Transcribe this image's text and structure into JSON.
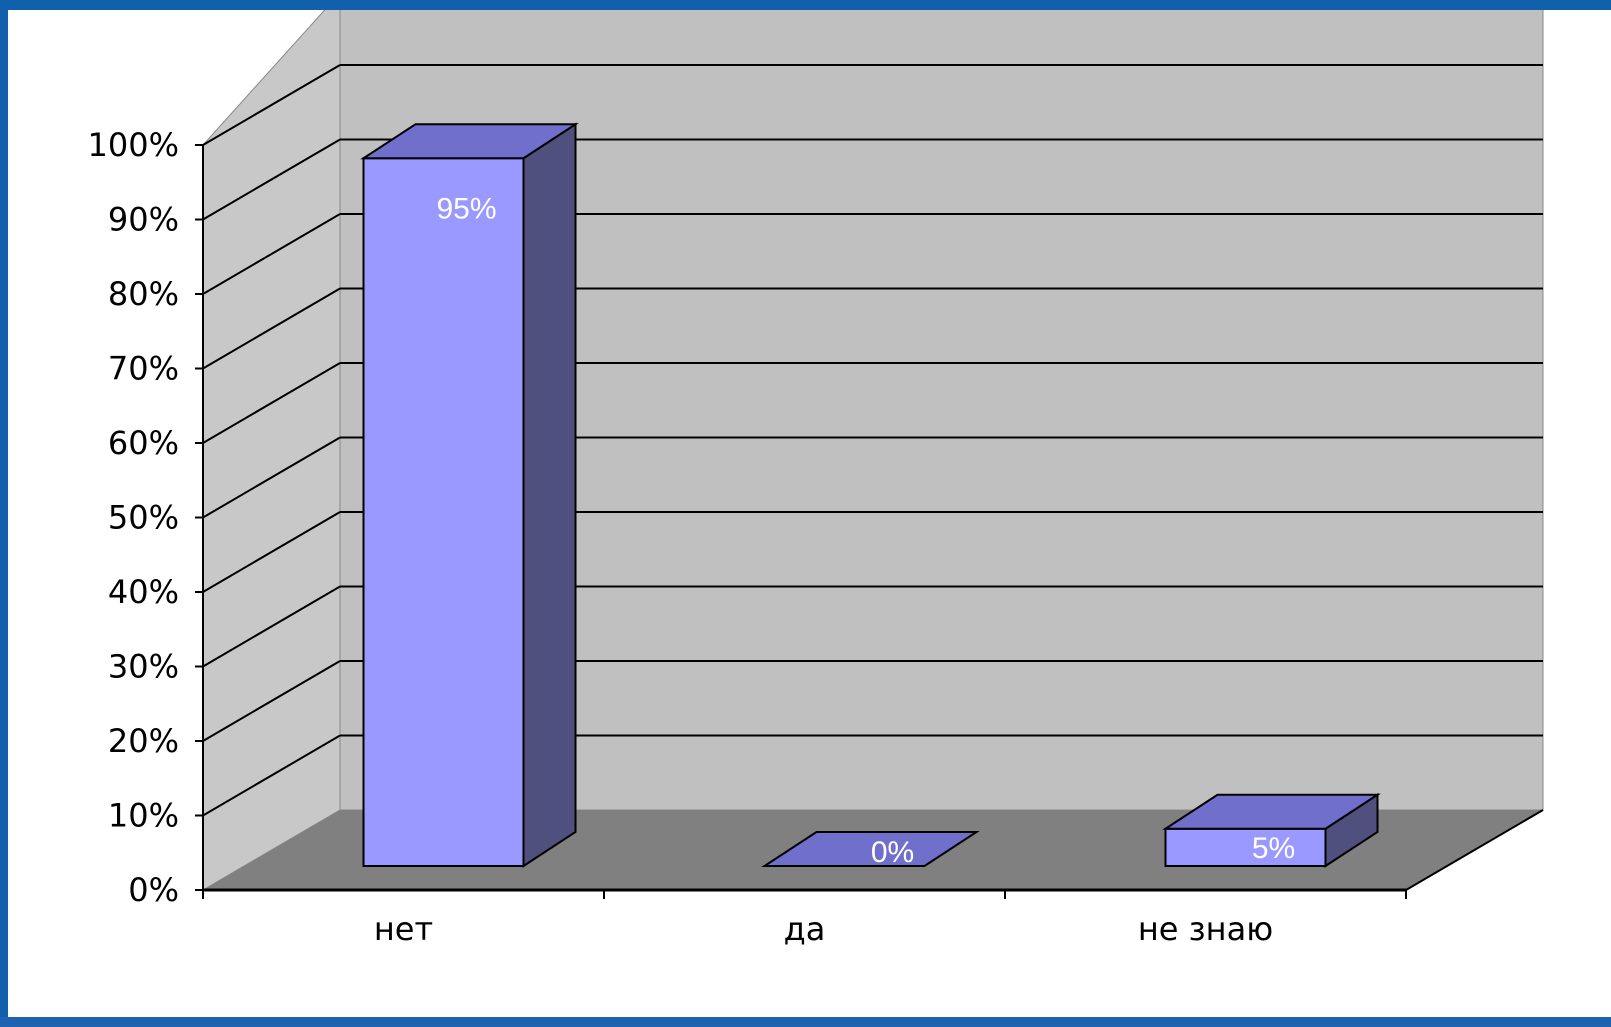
{
  "chart_data": {
    "type": "bar",
    "style": "3d-column",
    "categories": [
      "нет",
      "да",
      "не знаю"
    ],
    "values": [
      95,
      0,
      5
    ],
    "data_labels": [
      "95%",
      "0%",
      "5%"
    ],
    "y_ticks": [
      "0%",
      "10%",
      "20%",
      "30%",
      "40%",
      "50%",
      "60%",
      "70%",
      "80%",
      "90%",
      "100%"
    ],
    "ylim": [
      0,
      100
    ],
    "grid": true,
    "legend": "none",
    "title": "",
    "xlabel": "",
    "ylabel": ""
  },
  "colors": {
    "frame": "#1160ad",
    "back_wall": "#c0c0c0",
    "side_wall": "#c8c8c8",
    "floor": "#808080",
    "bar_front": "#9999ff",
    "bar_top": "#7070cc",
    "bar_side": "#50507f"
  }
}
